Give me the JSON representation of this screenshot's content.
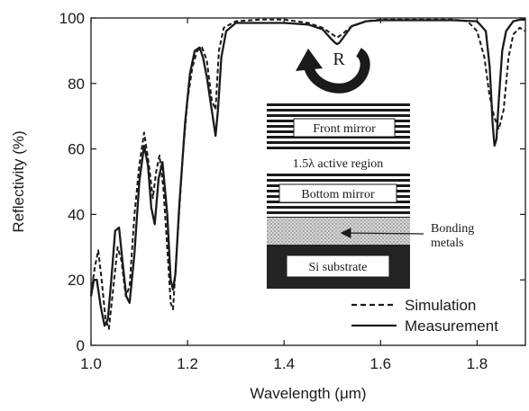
{
  "chart_data": {
    "type": "line",
    "xlabel": "Wavelength (μm)",
    "ylabel": "Reflectivity (%)",
    "xlim": [
      1.0,
      1.9
    ],
    "ylim": [
      0,
      100
    ],
    "xticks": [
      "1.0",
      "1.2",
      "1.4",
      "1.6",
      "1.8"
    ],
    "yticks": [
      "0",
      "20",
      "40",
      "60",
      "80",
      "100"
    ],
    "grid": false,
    "legend_position": "bottom-right",
    "series": [
      {
        "name": "Simulation",
        "style": "dashed",
        "x": [
          1.0,
          1.008,
          1.015,
          1.022,
          1.03,
          1.037,
          1.045,
          1.055,
          1.063,
          1.072,
          1.08,
          1.09,
          1.1,
          1.11,
          1.12,
          1.128,
          1.135,
          1.142,
          1.15,
          1.16,
          1.165,
          1.17,
          1.178,
          1.19,
          1.2,
          1.21,
          1.22,
          1.23,
          1.24,
          1.25,
          1.258,
          1.265,
          1.275,
          1.3,
          1.35,
          1.4,
          1.45,
          1.48,
          1.5,
          1.51,
          1.52,
          1.54,
          1.57,
          1.6,
          1.65,
          1.7,
          1.75,
          1.78,
          1.8,
          1.815,
          1.825,
          1.835,
          1.845,
          1.855,
          1.865,
          1.875,
          1.888,
          1.9
        ],
        "y": [
          16,
          24,
          29,
          20,
          8,
          5,
          16,
          30,
          26,
          15,
          18,
          40,
          55,
          65,
          55,
          45,
          53,
          58,
          48,
          25,
          13,
          11,
          30,
          58,
          75,
          85,
          90,
          91,
          87,
          75,
          72,
          90,
          97,
          99,
          99.5,
          99.5,
          98.5,
          97,
          95,
          94,
          95,
          97.5,
          99,
          99.5,
          99.5,
          99.5,
          99.5,
          99,
          96,
          88,
          77,
          70,
          66,
          72,
          88,
          95,
          97,
          96
        ]
      },
      {
        "name": "Measurement",
        "style": "solid",
        "x": [
          1.0,
          1.006,
          1.012,
          1.02,
          1.028,
          1.035,
          1.042,
          1.05,
          1.058,
          1.065,
          1.073,
          1.08,
          1.09,
          1.1,
          1.11,
          1.118,
          1.125,
          1.132,
          1.14,
          1.148,
          1.158,
          1.165,
          1.17,
          1.175,
          1.183,
          1.195,
          1.205,
          1.215,
          1.225,
          1.232,
          1.24,
          1.248,
          1.252,
          1.258,
          1.263,
          1.27,
          1.28,
          1.3,
          1.35,
          1.4,
          1.45,
          1.48,
          1.495,
          1.505,
          1.51,
          1.515,
          1.525,
          1.54,
          1.57,
          1.6,
          1.65,
          1.7,
          1.75,
          1.8,
          1.818,
          1.826,
          1.832,
          1.836,
          1.84,
          1.845,
          1.852,
          1.86,
          1.875,
          1.89,
          1.9
        ],
        "y": [
          15,
          20,
          20,
          12,
          6,
          8,
          20,
          35,
          36,
          26,
          15,
          13,
          28,
          50,
          61,
          55,
          42,
          37,
          51,
          56,
          40,
          20,
          17,
          22,
          43,
          68,
          83,
          90,
          91,
          88,
          82,
          74,
          70,
          64,
          72,
          88,
          96,
          98.5,
          98.5,
          98.5,
          98,
          96.5,
          94,
          92.5,
          92,
          92.5,
          94.5,
          97.5,
          99,
          99.3,
          99.3,
          99.3,
          99.3,
          99,
          96,
          85,
          68,
          61,
          63,
          75,
          90,
          96,
          99,
          99.5,
          99.5
        ]
      }
    ],
    "annotations": {
      "reflection_label": "R",
      "layers": [
        "Front mirror",
        "1.5λ active region",
        "Bottom mirror",
        "Bonding metals",
        "Si substrate"
      ]
    }
  }
}
